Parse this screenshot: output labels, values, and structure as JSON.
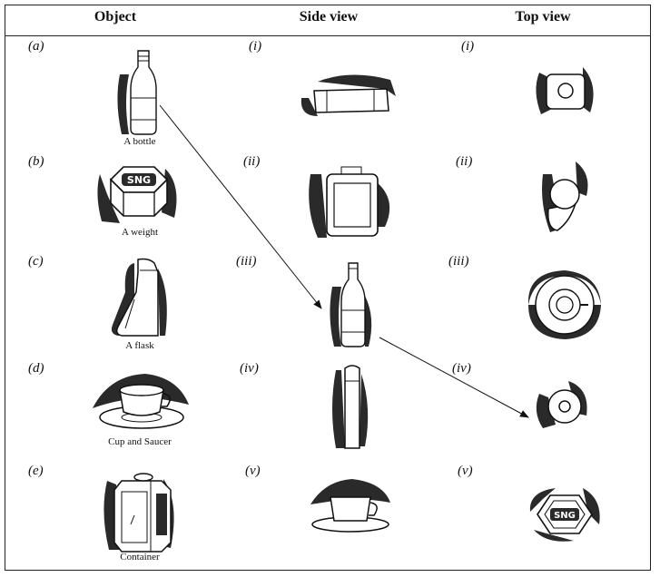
{
  "table": {
    "headers": {
      "object": "Object",
      "side": "Side view",
      "top": "Top view"
    },
    "objects": [
      {
        "index": "(a)",
        "caption": "A bottle"
      },
      {
        "index": "(b)",
        "caption": "A weight"
      },
      {
        "index": "(c)",
        "caption": "A flask"
      },
      {
        "index": "(d)",
        "caption": "Cup and Saucer"
      },
      {
        "index": "(e)",
        "caption": "Container"
      }
    ],
    "side_views": [
      {
        "index": "(i)"
      },
      {
        "index": "(ii)"
      },
      {
        "index": "(iii)"
      },
      {
        "index": "(iv)"
      },
      {
        "index": "(v)"
      }
    ],
    "top_views": [
      {
        "index": "(i)"
      },
      {
        "index": "(ii)"
      },
      {
        "index": "(iii)"
      },
      {
        "index": "(iv)"
      },
      {
        "index": "(v)"
      }
    ],
    "weight_label": "SNG",
    "matches": [
      {
        "from": "(a)",
        "to_side": "(iii)",
        "to_top": "(iv)"
      }
    ]
  },
  "colors": {
    "ink": "#111111",
    "shade": "#2a2a2a",
    "paper": "#ffffff"
  }
}
